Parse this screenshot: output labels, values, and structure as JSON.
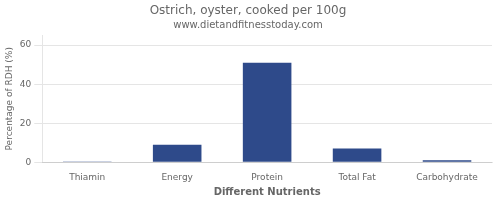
{
  "chart_data": {
    "type": "bar",
    "title": "Ostrich, oyster, cooked per 100g",
    "subtitle": "www.dietandfitnesstoday.com",
    "xlabel": "Different Nutrients",
    "ylabel": "Percentage of RDH (%)",
    "categories": [
      "Thiamin",
      "Energy",
      "Protein",
      "Total Fat",
      "Carbohydrate"
    ],
    "values": [
      0.3,
      9,
      51,
      7,
      1
    ],
    "color": "#2e4a8a",
    "ylim": [
      0,
      65
    ],
    "yticks": [
      0,
      20,
      40,
      60
    ],
    "grid": true
  }
}
